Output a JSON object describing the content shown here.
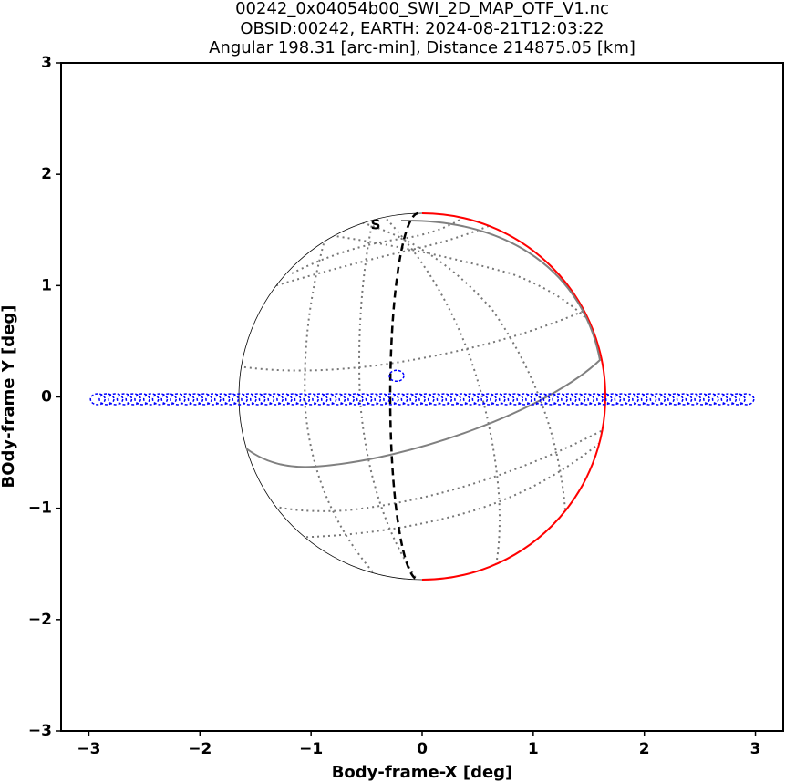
{
  "chart_data": {
    "type": "scatter",
    "title": [
      "00242_0x04054b00_SWI_2D_MAP_OTF_V1.nc",
      "OBSID:00242, EARTH: 2024-08-21T12:03:22",
      "Angular 198.31 [arc-min], Distance 214875.05 [km]"
    ],
    "x_label": "Body-frame-X [deg]",
    "y_label": "BOdy-frame Y [deg]",
    "annotation": "S",
    "xlim": [
      -3.25,
      3.25
    ],
    "ylim": [
      -3,
      3
    ],
    "xticks": [
      {
        "value": -3,
        "label": "−3"
      },
      {
        "value": -2,
        "label": "−2"
      },
      {
        "value": -1,
        "label": "−1"
      },
      0,
      1,
      2,
      3
    ],
    "yticks": [
      {
        "value": -3,
        "label": "−3"
      },
      {
        "value": -2,
        "label": "−2"
      },
      {
        "value": -1,
        "label": "−1"
      },
      0,
      1,
      2,
      3
    ],
    "series": [
      {
        "color": "#0000ff",
        "x": [
          -2.92,
          -2.84,
          -2.76,
          -2.68,
          -2.6,
          -2.52,
          -2.44,
          -2.36,
          -2.28,
          -2.2,
          -2.12,
          -2.04,
          -1.96,
          -1.88,
          -1.8,
          -1.72,
          -1.64,
          -1.56,
          -1.48,
          -1.4,
          -1.32,
          -1.24,
          -1.16,
          -1.08,
          -1,
          -0.92,
          -0.84,
          -0.76,
          -0.68,
          -0.6,
          -0.52,
          -0.44,
          -0.36,
          -0.28,
          -0.2,
          -0.12,
          -0.04,
          0.04,
          0.12,
          0.2,
          0.28,
          0.36,
          0.44,
          0.52,
          0.6,
          0.68,
          0.76,
          0.84,
          0.92,
          1,
          1.08,
          1.16,
          1.24,
          1.32,
          1.4,
          1.48,
          1.56,
          1.64,
          1.72,
          1.8,
          1.88,
          1.96,
          2.04,
          2.12,
          2.2,
          2.28,
          2.36,
          2.44,
          2.52,
          2.6,
          2.68,
          2.76,
          2.84,
          2.92
        ],
        "values": [
          -0.02,
          -0.02,
          -0.02,
          -0.02,
          -0.02,
          -0.02,
          -0.02,
          -0.02,
          -0.02,
          -0.02,
          -0.02,
          -0.02,
          -0.02,
          -0.02,
          -0.02,
          -0.02,
          -0.02,
          -0.02,
          -0.02,
          -0.02,
          -0.02,
          -0.02,
          -0.02,
          -0.02,
          -0.02,
          -0.02,
          -0.02,
          -0.02,
          -0.02,
          -0.02,
          -0.02,
          -0.02,
          -0.02,
          -0.02,
          -0.02,
          -0.02,
          -0.02,
          -0.02,
          -0.02,
          -0.02,
          -0.02,
          -0.02,
          -0.02,
          -0.02,
          -0.02,
          -0.02,
          -0.02,
          -0.02,
          -0.02,
          -0.02,
          -0.02,
          -0.02,
          -0.02,
          -0.02,
          -0.02,
          -0.02,
          -0.02,
          -0.02,
          -0.02,
          -0.02,
          -0.02,
          -0.02,
          -0.02,
          -0.02,
          -0.02,
          -0.02,
          -0.02,
          -0.02,
          -0.02,
          -0.02,
          -0.02,
          -0.02,
          -0.02,
          -0.02
        ]
      },
      {
        "color": "#0000ff",
        "x": [
          -0.23
        ],
        "values": [
          0.19
        ]
      }
    ]
  }
}
